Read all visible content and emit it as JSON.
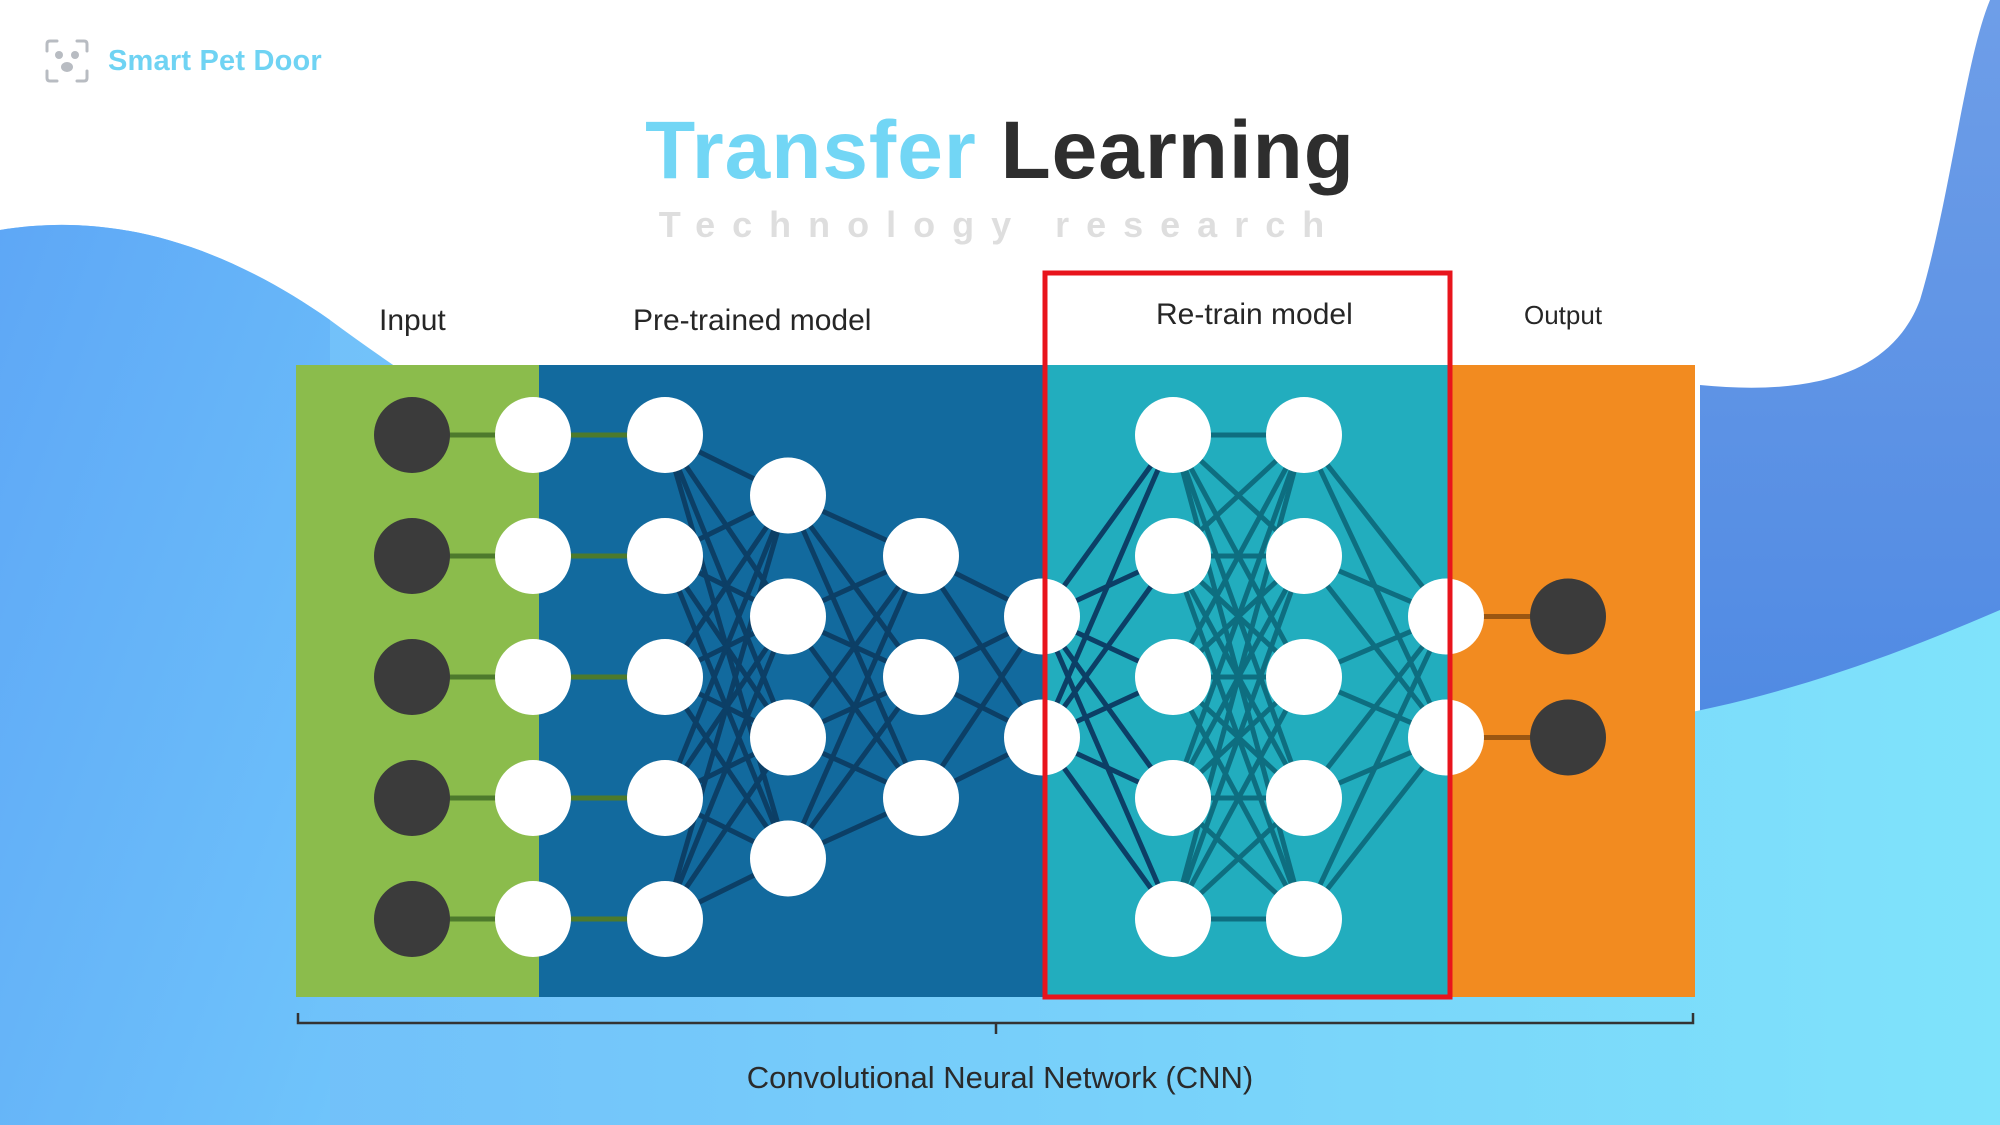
{
  "brand": {
    "name": "Smart Pet Door",
    "icon": "pet-face-scan-icon"
  },
  "title": {
    "part1": "Transfer",
    "part2": "Learning"
  },
  "subtitle": "Technology research",
  "sections": {
    "input": "Input",
    "pretrained": "Pre-trained model",
    "retrain": "Re-train model",
    "output": "Output"
  },
  "caption": "Convolutional Neural Network (CNN)",
  "colors": {
    "input_panel": "#8bbc4c",
    "pretrained_panel": "#126a9e",
    "retrain_panel": "#22adbe",
    "output_panel": "#f28b20",
    "highlight_box": "#e8141c",
    "dark_node": "#3b3b3b",
    "light_node": "#ffffff",
    "brand_accent": "#6fd3f3"
  },
  "network": {
    "layers": [
      {
        "section": "input",
        "nodes": 5,
        "kind": "dark"
      },
      {
        "section": "input",
        "nodes": 5,
        "kind": "light"
      },
      {
        "section": "pretrained",
        "nodes": 5,
        "kind": "light"
      },
      {
        "section": "pretrained",
        "nodes": 4,
        "kind": "light"
      },
      {
        "section": "pretrained",
        "nodes": 3,
        "kind": "light"
      },
      {
        "section": "pretrained",
        "nodes": 2,
        "kind": "light"
      },
      {
        "section": "retrain",
        "nodes": 5,
        "kind": "light"
      },
      {
        "section": "retrain",
        "nodes": 5,
        "kind": "light"
      },
      {
        "section": "retrain",
        "nodes": 2,
        "kind": "light"
      },
      {
        "section": "output",
        "nodes": 2,
        "kind": "dark"
      }
    ]
  }
}
